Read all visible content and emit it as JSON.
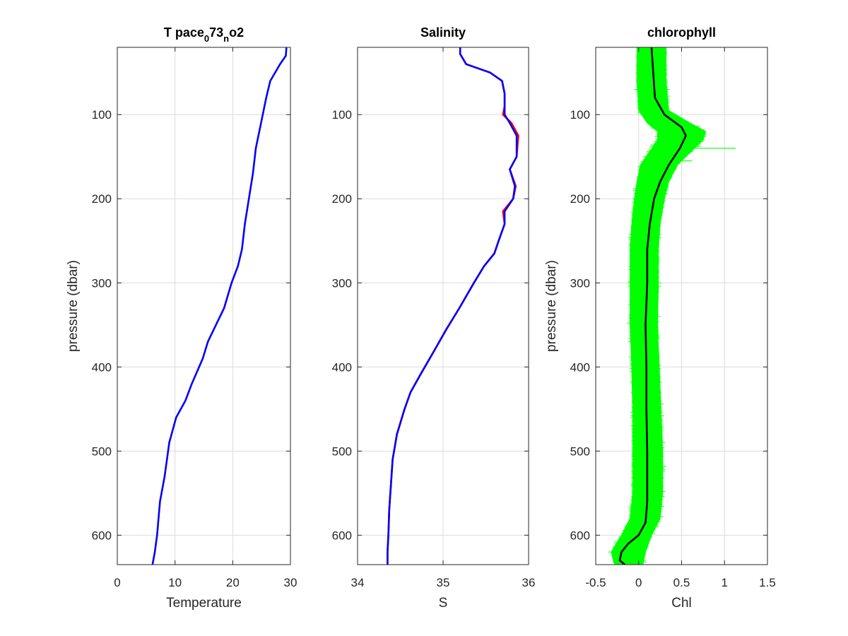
{
  "chart_data": [
    {
      "type": "line",
      "title_parts": [
        "T pace",
        "0",
        "73",
        "n",
        "o2"
      ],
      "xlabel": "Temperature",
      "ylabel": "pressure (dbar)",
      "xlim": [
        0,
        30
      ],
      "ylim": [
        20,
        635
      ],
      "y_reversed": true,
      "xticks": [
        "0",
        "10",
        "20",
        "30"
      ],
      "yticks": [
        "100",
        "200",
        "300",
        "400",
        "500",
        "600"
      ],
      "grid": true,
      "series": [
        {
          "color": "#0000ff",
          "x": [
            29.3,
            29.2,
            28.2,
            26.5,
            25.8,
            24.9,
            24.0,
            23.5,
            22.8,
            22.1,
            21.6,
            20.9,
            19.8,
            18.5,
            17.1,
            15.7,
            14.8,
            12.9,
            11.8,
            10.2,
            9.0,
            8.2,
            7.4,
            6.9,
            6.5,
            6.1
          ],
          "y": [
            20,
            30,
            40,
            60,
            80,
            110,
            140,
            170,
            200,
            230,
            260,
            280,
            300,
            330,
            350,
            370,
            390,
            420,
            440,
            460,
            490,
            530,
            560,
            600,
            620,
            635
          ]
        }
      ]
    },
    {
      "type": "line",
      "title": "Salinity",
      "xlabel": "S",
      "ylabel": "",
      "xlim": [
        34,
        36
      ],
      "ylim": [
        20,
        635
      ],
      "y_reversed": true,
      "xticks": [
        "34",
        "35",
        "36"
      ],
      "yticks": [
        "100",
        "200",
        "300",
        "400",
        "500",
        "600"
      ],
      "grid": true,
      "series": [
        {
          "color": "#ff0000",
          "x": [
            35.2,
            35.2,
            35.27,
            35.55,
            35.69,
            35.72,
            35.72,
            35.7,
            35.8,
            35.88,
            35.86,
            35.78,
            35.85,
            35.82,
            35.7,
            35.72,
            35.65,
            35.6,
            35.48,
            35.36,
            35.19,
            35.04,
            34.9,
            34.73,
            34.62,
            34.55,
            34.46,
            34.41,
            34.39,
            34.37,
            34.36,
            34.35,
            34.35
          ],
          "y": [
            20,
            28,
            40,
            50,
            60,
            75,
            90,
            100,
            110,
            125,
            150,
            165,
            185,
            200,
            215,
            230,
            250,
            265,
            280,
            300,
            330,
            355,
            380,
            410,
            430,
            450,
            480,
            510,
            540,
            570,
            600,
            620,
            635
          ]
        },
        {
          "color": "#0000ff",
          "x": [
            35.2,
            35.2,
            35.27,
            35.55,
            35.69,
            35.72,
            35.72,
            35.72,
            35.78,
            35.86,
            35.86,
            35.78,
            35.84,
            35.82,
            35.72,
            35.72,
            35.65,
            35.6,
            35.48,
            35.36,
            35.19,
            35.04,
            34.9,
            34.73,
            34.62,
            34.55,
            34.46,
            34.41,
            34.39,
            34.37,
            34.36,
            34.35,
            34.35
          ],
          "y": [
            20,
            28,
            40,
            50,
            60,
            75,
            90,
            100,
            110,
            125,
            150,
            165,
            185,
            200,
            215,
            230,
            250,
            265,
            280,
            300,
            330,
            355,
            380,
            410,
            430,
            450,
            480,
            510,
            540,
            570,
            600,
            620,
            635
          ]
        }
      ]
    },
    {
      "type": "line",
      "title": "chlorophyll",
      "xlabel": "Chl",
      "ylabel": "pressure (dbar)",
      "xlim": [
        -0.5,
        1.5
      ],
      "ylim": [
        20,
        635
      ],
      "y_reversed": true,
      "xticks": [
        "-0.5",
        "0",
        "0.5",
        "1",
        "1.5"
      ],
      "yticks": [
        "100",
        "200",
        "300",
        "400",
        "500",
        "600"
      ],
      "grid": true,
      "band": {
        "color": "#00ff00",
        "y": [
          20,
          60,
          95,
          110,
          120,
          130,
          145,
          160,
          180,
          200,
          230,
          260,
          300,
          350,
          400,
          450,
          500,
          550,
          580,
          600,
          620,
          635
        ],
        "lower": [
          -0.02,
          -0.02,
          0.0,
          0.1,
          0.22,
          0.22,
          0.12,
          0.02,
          -0.02,
          -0.05,
          -0.08,
          -0.1,
          -0.1,
          -0.1,
          -0.08,
          -0.07,
          -0.07,
          -0.07,
          -0.1,
          -0.2,
          -0.32,
          -0.28
        ],
        "upper": [
          0.32,
          0.32,
          0.35,
          0.6,
          0.78,
          0.75,
          0.6,
          0.45,
          0.35,
          0.3,
          0.25,
          0.23,
          0.23,
          0.22,
          0.24,
          0.26,
          0.28,
          0.28,
          0.25,
          0.15,
          0.08,
          0.05
        ]
      },
      "spikes": [
        {
          "y": 140,
          "x": 1.13
        },
        {
          "y": 155,
          "x": 0.62
        }
      ],
      "series": [
        {
          "color": "#000000",
          "x": [
            0.15,
            0.17,
            0.19,
            0.3,
            0.5,
            0.55,
            0.48,
            0.35,
            0.25,
            0.18,
            0.13,
            0.1,
            0.1,
            0.08,
            0.09,
            0.09,
            0.1,
            0.1,
            0.08,
            0.0,
            -0.12,
            -0.2,
            -0.22,
            -0.16
          ],
          "y": [
            20,
            50,
            80,
            100,
            115,
            125,
            140,
            160,
            180,
            200,
            230,
            260,
            300,
            350,
            400,
            450,
            500,
            560,
            585,
            600,
            610,
            620,
            630,
            635
          ]
        }
      ]
    }
  ]
}
